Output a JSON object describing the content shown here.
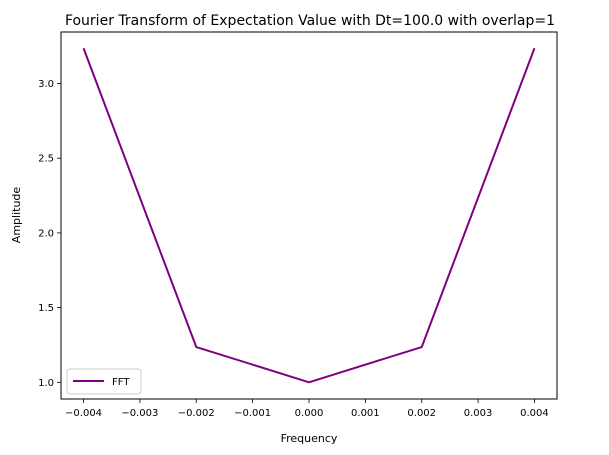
{
  "chart_data": {
    "type": "line",
    "title": "Fourier Transform of Expectation Value with Dt=100.0 with overlap=1",
    "xlabel": "Frequency",
    "ylabel": "Amplitude",
    "xlim": [
      -0.0044,
      0.0044
    ],
    "ylim": [
      0.888,
      3.345
    ],
    "x_ticks": [
      -0.004,
      -0.003,
      -0.002,
      -0.001,
      0.0,
      0.001,
      0.002,
      0.003,
      0.004
    ],
    "x_tick_labels": [
      "−0.004",
      "−0.003",
      "−0.002",
      "−0.001",
      "0.000",
      "0.001",
      "0.002",
      "0.003",
      "0.004"
    ],
    "y_ticks": [
      1.0,
      1.5,
      2.0,
      2.5,
      3.0
    ],
    "y_tick_labels": [
      "1.0",
      "1.5",
      "2.0",
      "2.5",
      "3.0"
    ],
    "grid": false,
    "legend_position": "lower-left",
    "series": [
      {
        "name": "FFT",
        "color": "#800080",
        "x": [
          -0.004,
          -0.002,
          0.0,
          0.002,
          0.004
        ],
        "y": [
          3.236,
          1.236,
          1.0,
          1.236,
          3.236
        ]
      }
    ]
  }
}
